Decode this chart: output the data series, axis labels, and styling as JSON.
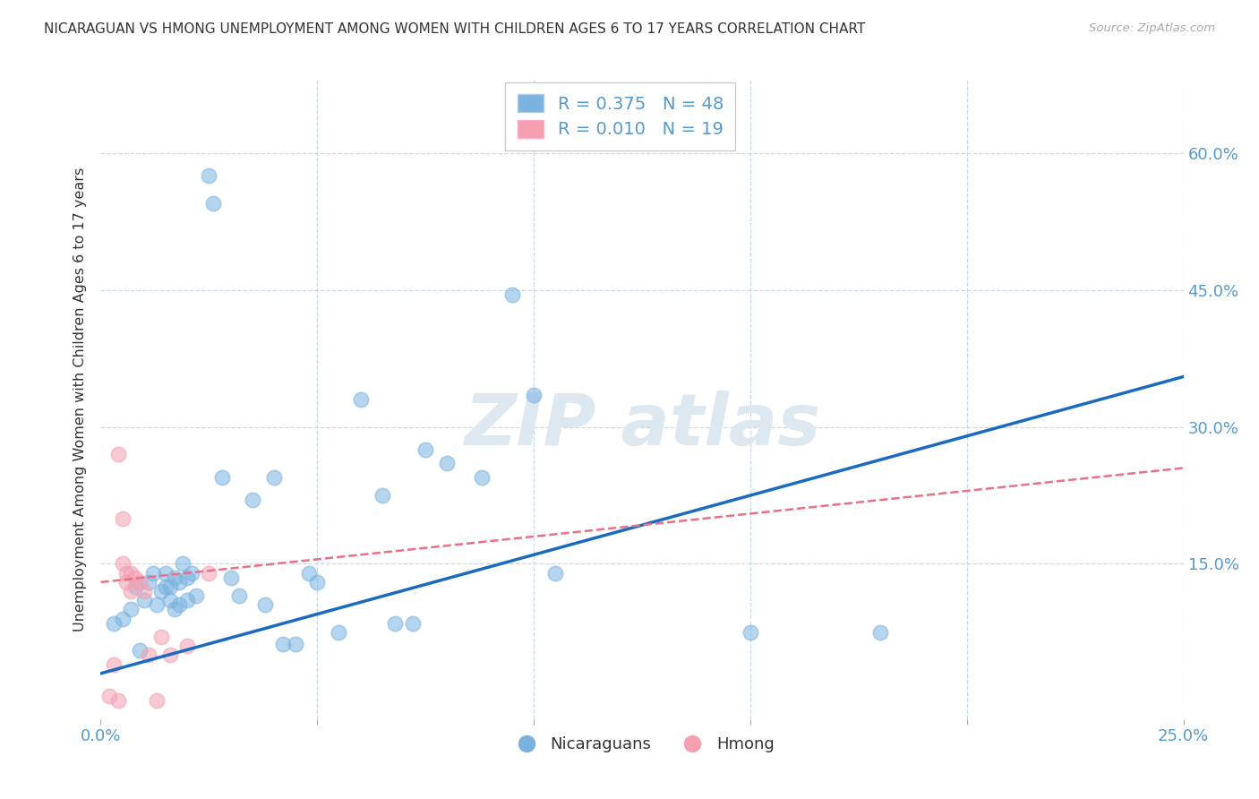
{
  "title": "NICARAGUAN VS HMONG UNEMPLOYMENT AMONG WOMEN WITH CHILDREN AGES 6 TO 17 YEARS CORRELATION CHART",
  "source": "Source: ZipAtlas.com",
  "ylabel": "Unemployment Among Women with Children Ages 6 to 17 years",
  "xlim": [
    0.0,
    0.25
  ],
  "ylim": [
    -0.02,
    0.68
  ],
  "plot_ylim": [
    0.0,
    0.65
  ],
  "nicaraguan_R": 0.375,
  "nicaraguan_N": 48,
  "hmong_R": 0.01,
  "hmong_N": 19,
  "nicaraguan_color": "#7ab3e0",
  "hmong_color": "#f4a0b0",
  "nicaraguan_line_color": "#1a6bbf",
  "hmong_line_color": "#e8708a",
  "background_color": "#ffffff",
  "grid_color": "#c8d8e8",
  "tick_color": "#5599cc",
  "nicaraguan_x": [
    0.003,
    0.005,
    0.007,
    0.008,
    0.009,
    0.01,
    0.011,
    0.012,
    0.013,
    0.014,
    0.015,
    0.015,
    0.016,
    0.016,
    0.017,
    0.017,
    0.018,
    0.018,
    0.019,
    0.02,
    0.02,
    0.021,
    0.022,
    0.025,
    0.026,
    0.028,
    0.03,
    0.032,
    0.035,
    0.038,
    0.04,
    0.042,
    0.045,
    0.048,
    0.05,
    0.055,
    0.06,
    0.065,
    0.068,
    0.072,
    0.075,
    0.08,
    0.088,
    0.095,
    0.1,
    0.105,
    0.15,
    0.18
  ],
  "nicaraguan_y": [
    0.085,
    0.09,
    0.1,
    0.125,
    0.055,
    0.11,
    0.13,
    0.14,
    0.105,
    0.12,
    0.125,
    0.14,
    0.11,
    0.125,
    0.1,
    0.135,
    0.105,
    0.13,
    0.15,
    0.11,
    0.135,
    0.14,
    0.115,
    0.575,
    0.545,
    0.245,
    0.135,
    0.115,
    0.22,
    0.105,
    0.245,
    0.062,
    0.062,
    0.14,
    0.13,
    0.075,
    0.33,
    0.225,
    0.085,
    0.085,
    0.275,
    0.26,
    0.245,
    0.445,
    0.335,
    0.14,
    0.075,
    0.075
  ],
  "hmong_x": [
    0.002,
    0.003,
    0.004,
    0.004,
    0.005,
    0.005,
    0.006,
    0.006,
    0.007,
    0.007,
    0.008,
    0.009,
    0.01,
    0.011,
    0.013,
    0.014,
    0.016,
    0.02,
    0.025
  ],
  "hmong_y": [
    0.005,
    0.04,
    0.0,
    0.27,
    0.2,
    0.15,
    0.14,
    0.13,
    0.12,
    0.14,
    0.135,
    0.13,
    0.12,
    0.05,
    0.0,
    0.07,
    0.05,
    0.06,
    0.14
  ],
  "nic_trend_x0": 0.0,
  "nic_trend_y0": 0.03,
  "nic_trend_x1": 0.25,
  "nic_trend_y1": 0.355,
  "hmong_trend_x0": 0.0,
  "hmong_trend_y0": 0.13,
  "hmong_trend_x1": 0.25,
  "hmong_trend_y1": 0.255
}
